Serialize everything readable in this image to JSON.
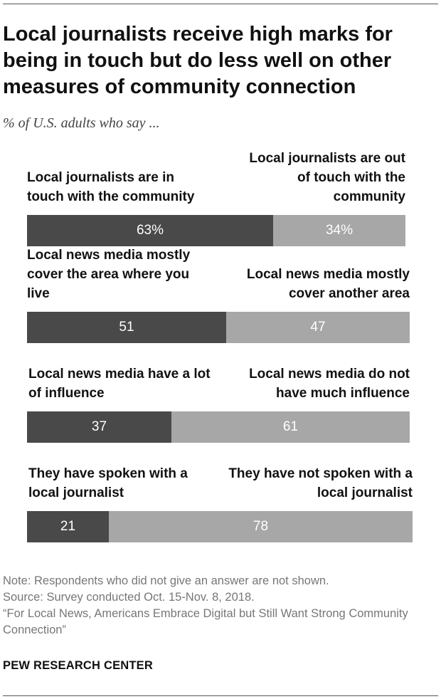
{
  "title": "Local journalists receive high marks for being in touch but do less well on other measures of community connection",
  "subtitle": "% of U.S. adults who say ...",
  "chart_data": {
    "type": "bar",
    "orientation": "horizontal",
    "stacked": true,
    "xlim": [
      0,
      100
    ],
    "grid": false,
    "rows": [
      {
        "left_label": "Local journalists are in touch with the community",
        "right_label": "Local journalists are out of touch with the community",
        "left_value": 63,
        "right_value": 34,
        "left_display": "63%",
        "right_display": "34%"
      },
      {
        "left_label": "Local news media mostly cover the area where you live",
        "right_label": "Local news media mostly cover another area",
        "left_value": 51,
        "right_value": 47,
        "left_display": "51",
        "right_display": "47"
      },
      {
        "left_label": "Local news media have a lot of influence",
        "right_label": "Local news media do not have much influence",
        "left_value": 37,
        "right_value": 61,
        "left_display": "37",
        "right_display": "61"
      },
      {
        "left_label": "They have spoken with a local journalist",
        "right_label": "They have not spoken with a local journalist",
        "left_value": 21,
        "right_value": 78,
        "left_display": "21",
        "right_display": "78"
      }
    ]
  },
  "colors": {
    "dark": "#494949",
    "light": "#a7a7a7"
  },
  "notes": {
    "note": "Note: Respondents who did not give an answer are not shown.",
    "source": "Source: Survey conducted Oct. 15-Nov. 8, 2018.",
    "report": "“For Local News, Americans Embrace Digital but Still Want Strong Community Connection”"
  },
  "org": "PEW RESEARCH CENTER"
}
